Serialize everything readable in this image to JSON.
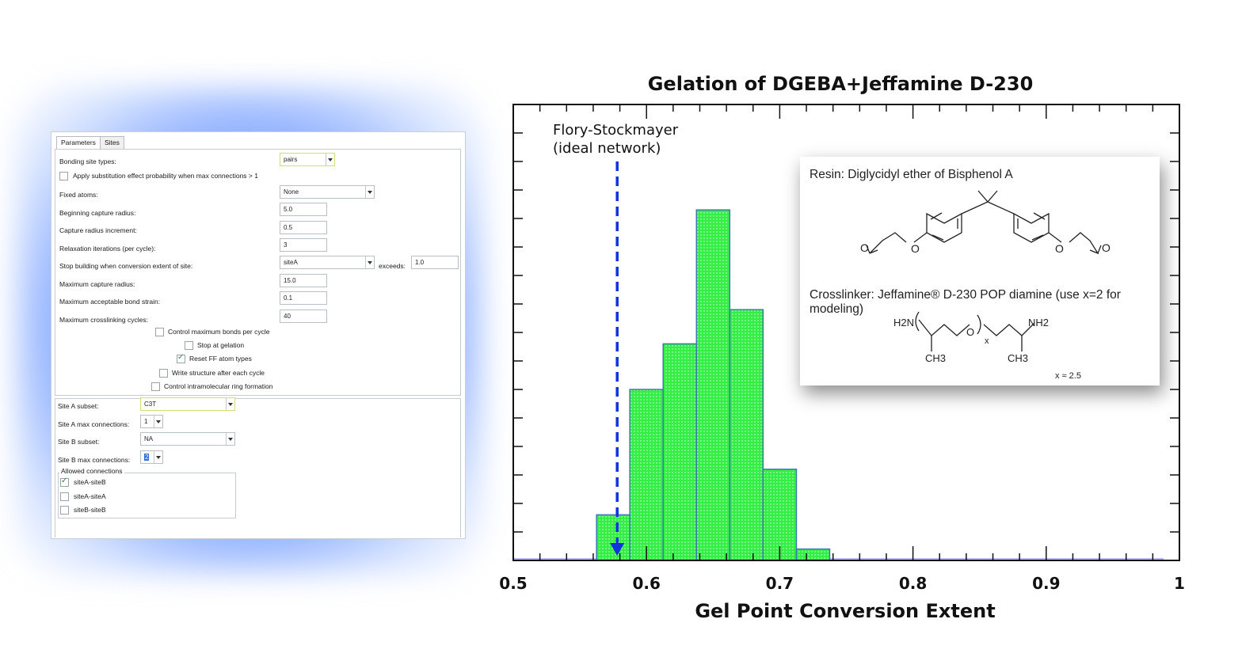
{
  "panel": {
    "tabs": [
      "Parameters",
      "Sites"
    ],
    "rows": [
      {
        "label": "Bonding site types:",
        "value": "pairs"
      },
      {
        "label": "Apply substitution effect probability when max connections > 1"
      },
      {
        "label": "Fixed atoms:",
        "value": "None"
      },
      {
        "label": "Beginning capture radius:",
        "value": "5.0"
      },
      {
        "label": "Capture radius increment:",
        "value": "0.5"
      },
      {
        "label": "Relaxation iterations (per cycle):",
        "value": "3"
      },
      {
        "label": "Stop building when conversion extent of site:",
        "value": "siteA",
        "exceeds_label": "exceeds:",
        "exceeds_value": "1.0"
      },
      {
        "label": "Maximum capture radius:",
        "value": "15.0"
      },
      {
        "label": "Maximum acceptable bond strain:",
        "value": "0.1"
      },
      {
        "label": "Maximum crosslinking cycles:",
        "value": "40"
      }
    ],
    "options": [
      {
        "label": "Control maximum bonds per cycle",
        "checked": false
      },
      {
        "label": "Stop at gelation",
        "checked": false
      },
      {
        "label": "Reset FF atom types",
        "checked": true
      },
      {
        "label": "Write structure after each cycle",
        "checked": false
      },
      {
        "label": "Control intramolecular ring formation",
        "checked": false
      }
    ],
    "sites": {
      "site_a_subset_label": "Site A subset:",
      "site_a_subset": "C3T",
      "site_a_max_label": "Site A max connections:",
      "site_a_max": "1",
      "site_b_subset_label": "Site B subset:",
      "site_b_subset": "NA",
      "site_b_max_label": "Site B max connections:",
      "site_b_max": "2"
    },
    "allowed": {
      "legend": "Allowed connections",
      "items": [
        {
          "label": "siteA-siteB",
          "checked": true
        },
        {
          "label": "siteA-siteA",
          "checked": false
        },
        {
          "label": "siteB-siteB",
          "checked": false
        }
      ]
    }
  },
  "chart_data": {
    "type": "bar",
    "title": "Gelation of DGEBA+Jeffamine D-230",
    "xlabel": "Gel Point Conversion Extent",
    "ylabel": "",
    "xlim": [
      0.5,
      1.0
    ],
    "ylim": [
      0,
      16
    ],
    "xticks": [
      "0.5",
      "0.6",
      "0.7",
      "0.8",
      "0.9",
      "1"
    ],
    "bins": [
      {
        "x0": 0.5625,
        "x1": 0.5875,
        "value": 1.6
      },
      {
        "x0": 0.5875,
        "x1": 0.6125,
        "value": 6.0
      },
      {
        "x0": 0.6125,
        "x1": 0.6375,
        "value": 7.6
      },
      {
        "x0": 0.6375,
        "x1": 0.6625,
        "value": 12.3
      },
      {
        "x0": 0.6625,
        "x1": 0.6875,
        "value": 8.8
      },
      {
        "x0": 0.6875,
        "x1": 0.7125,
        "value": 3.2
      },
      {
        "x0": 0.7125,
        "x1": 0.7375,
        "value": 0.4
      }
    ],
    "bar_color": "#33ee44",
    "marker": {
      "x": 0.578,
      "label_line1": "Flory-Stockmayer",
      "label_line2": "(ideal network)",
      "color": "#1133dd"
    }
  },
  "inset": {
    "resin": "Resin: Diglycidyl ether of Bisphenol A",
    "crosslinker_line1": "Crosslinker: Jeffamine® D-230 POP diamine (use x=2 for",
    "crosslinker_line2": "modeling)",
    "h2n": "H2N",
    "nh2": "NH2",
    "ch3": "CH3",
    "o": "O",
    "x_sub": "x",
    "x_note": "x ≈ 2.5"
  }
}
